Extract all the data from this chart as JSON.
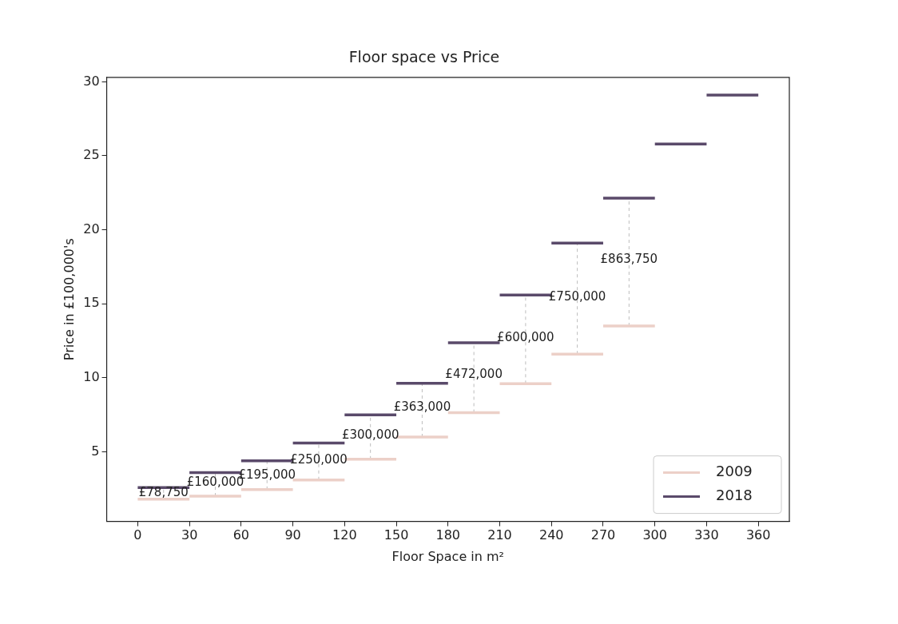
{
  "chart_data": {
    "type": "line",
    "title": "Floor space vs Price",
    "xlabel": "Floor Space in m²",
    "ylabel": "Price in £100,000's",
    "series": [
      {
        "name": "2009",
        "color": "#ecd0c8",
        "x": [
          0,
          30,
          null,
          30,
          60,
          null,
          60,
          90,
          null,
          90,
          120,
          null,
          120,
          150,
          null,
          150,
          180,
          null,
          180,
          210,
          null,
          210,
          240,
          null,
          240,
          270,
          null,
          270,
          300
        ],
        "values": [
          1.8,
          1.8,
          null,
          2.0,
          2.0,
          null,
          2.45,
          2.45,
          null,
          3.1,
          3.1,
          null,
          4.5,
          4.5,
          null,
          6.0,
          6.0,
          null,
          7.65,
          7.65,
          null,
          9.6,
          9.6,
          null,
          11.6,
          11.6,
          null,
          13.5,
          13.5
        ]
      },
      {
        "name": "2018",
        "color": "#5a4a6a",
        "x": [
          0,
          30,
          null,
          30,
          60,
          null,
          60,
          90,
          null,
          90,
          120,
          null,
          120,
          150,
          null,
          150,
          180,
          null,
          180,
          210,
          null,
          210,
          240,
          null,
          240,
          270,
          null,
          270,
          300,
          null,
          300,
          330,
          null,
          330,
          360
        ],
        "values": [
          2.59,
          2.59,
          null,
          3.6,
          3.6,
          null,
          4.4,
          4.4,
          null,
          5.6,
          5.6,
          null,
          7.5,
          7.5,
          null,
          9.63,
          9.63,
          null,
          12.37,
          12.37,
          null,
          15.6,
          15.6,
          null,
          19.1,
          19.1,
          null,
          22.14,
          22.14,
          null,
          25.8,
          25.8,
          null,
          29.1,
          29.1
        ]
      },
      {
        "color": "#bdbdbd",
        "line_style": "dashed",
        "x": [
          15,
          15,
          null,
          45,
          45,
          null,
          75,
          75,
          null,
          105,
          105,
          null,
          135,
          135,
          null,
          165,
          165,
          null,
          195,
          195,
          null,
          225,
          225,
          null,
          255,
          255,
          null,
          285,
          285
        ],
        "values": [
          1.8,
          2.59,
          null,
          2.0,
          3.6,
          null,
          2.45,
          4.4,
          null,
          3.1,
          5.6,
          null,
          4.5,
          7.5,
          null,
          6.0,
          9.63,
          null,
          7.65,
          12.37,
          null,
          9.6,
          15.6,
          null,
          11.6,
          19.1,
          null,
          13.5,
          22.14
        ]
      }
    ],
    "annotations": [
      {
        "text": "£78,750",
        "x": 15,
        "y": 2.2
      },
      {
        "text": "£160,000",
        "x": 45,
        "y": 2.9
      },
      {
        "text": "£195,000",
        "x": 75,
        "y": 3.4
      },
      {
        "text": "£250,000",
        "x": 105,
        "y": 4.45
      },
      {
        "text": "£300,000",
        "x": 135,
        "y": 6.1
      },
      {
        "text": "£363,000",
        "x": 165,
        "y": 8.0
      },
      {
        "text": "£472,000",
        "x": 195,
        "y": 10.2
      },
      {
        "text": "£600,000",
        "x": 225,
        "y": 12.7
      },
      {
        "text": "£750,000",
        "x": 255,
        "y": 15.45
      },
      {
        "text": "£863,750",
        "x": 285,
        "y": 17.95
      }
    ],
    "xlim": [
      -18,
      378
    ],
    "xticks": [
      0,
      30,
      60,
      90,
      120,
      150,
      180,
      210,
      240,
      270,
      300,
      330,
      360
    ],
    "ylim": [
      0.3,
      30.3
    ],
    "yticks": [
      5,
      10,
      15,
      20,
      25,
      30
    ],
    "grid": false,
    "legend": "bottom right"
  }
}
